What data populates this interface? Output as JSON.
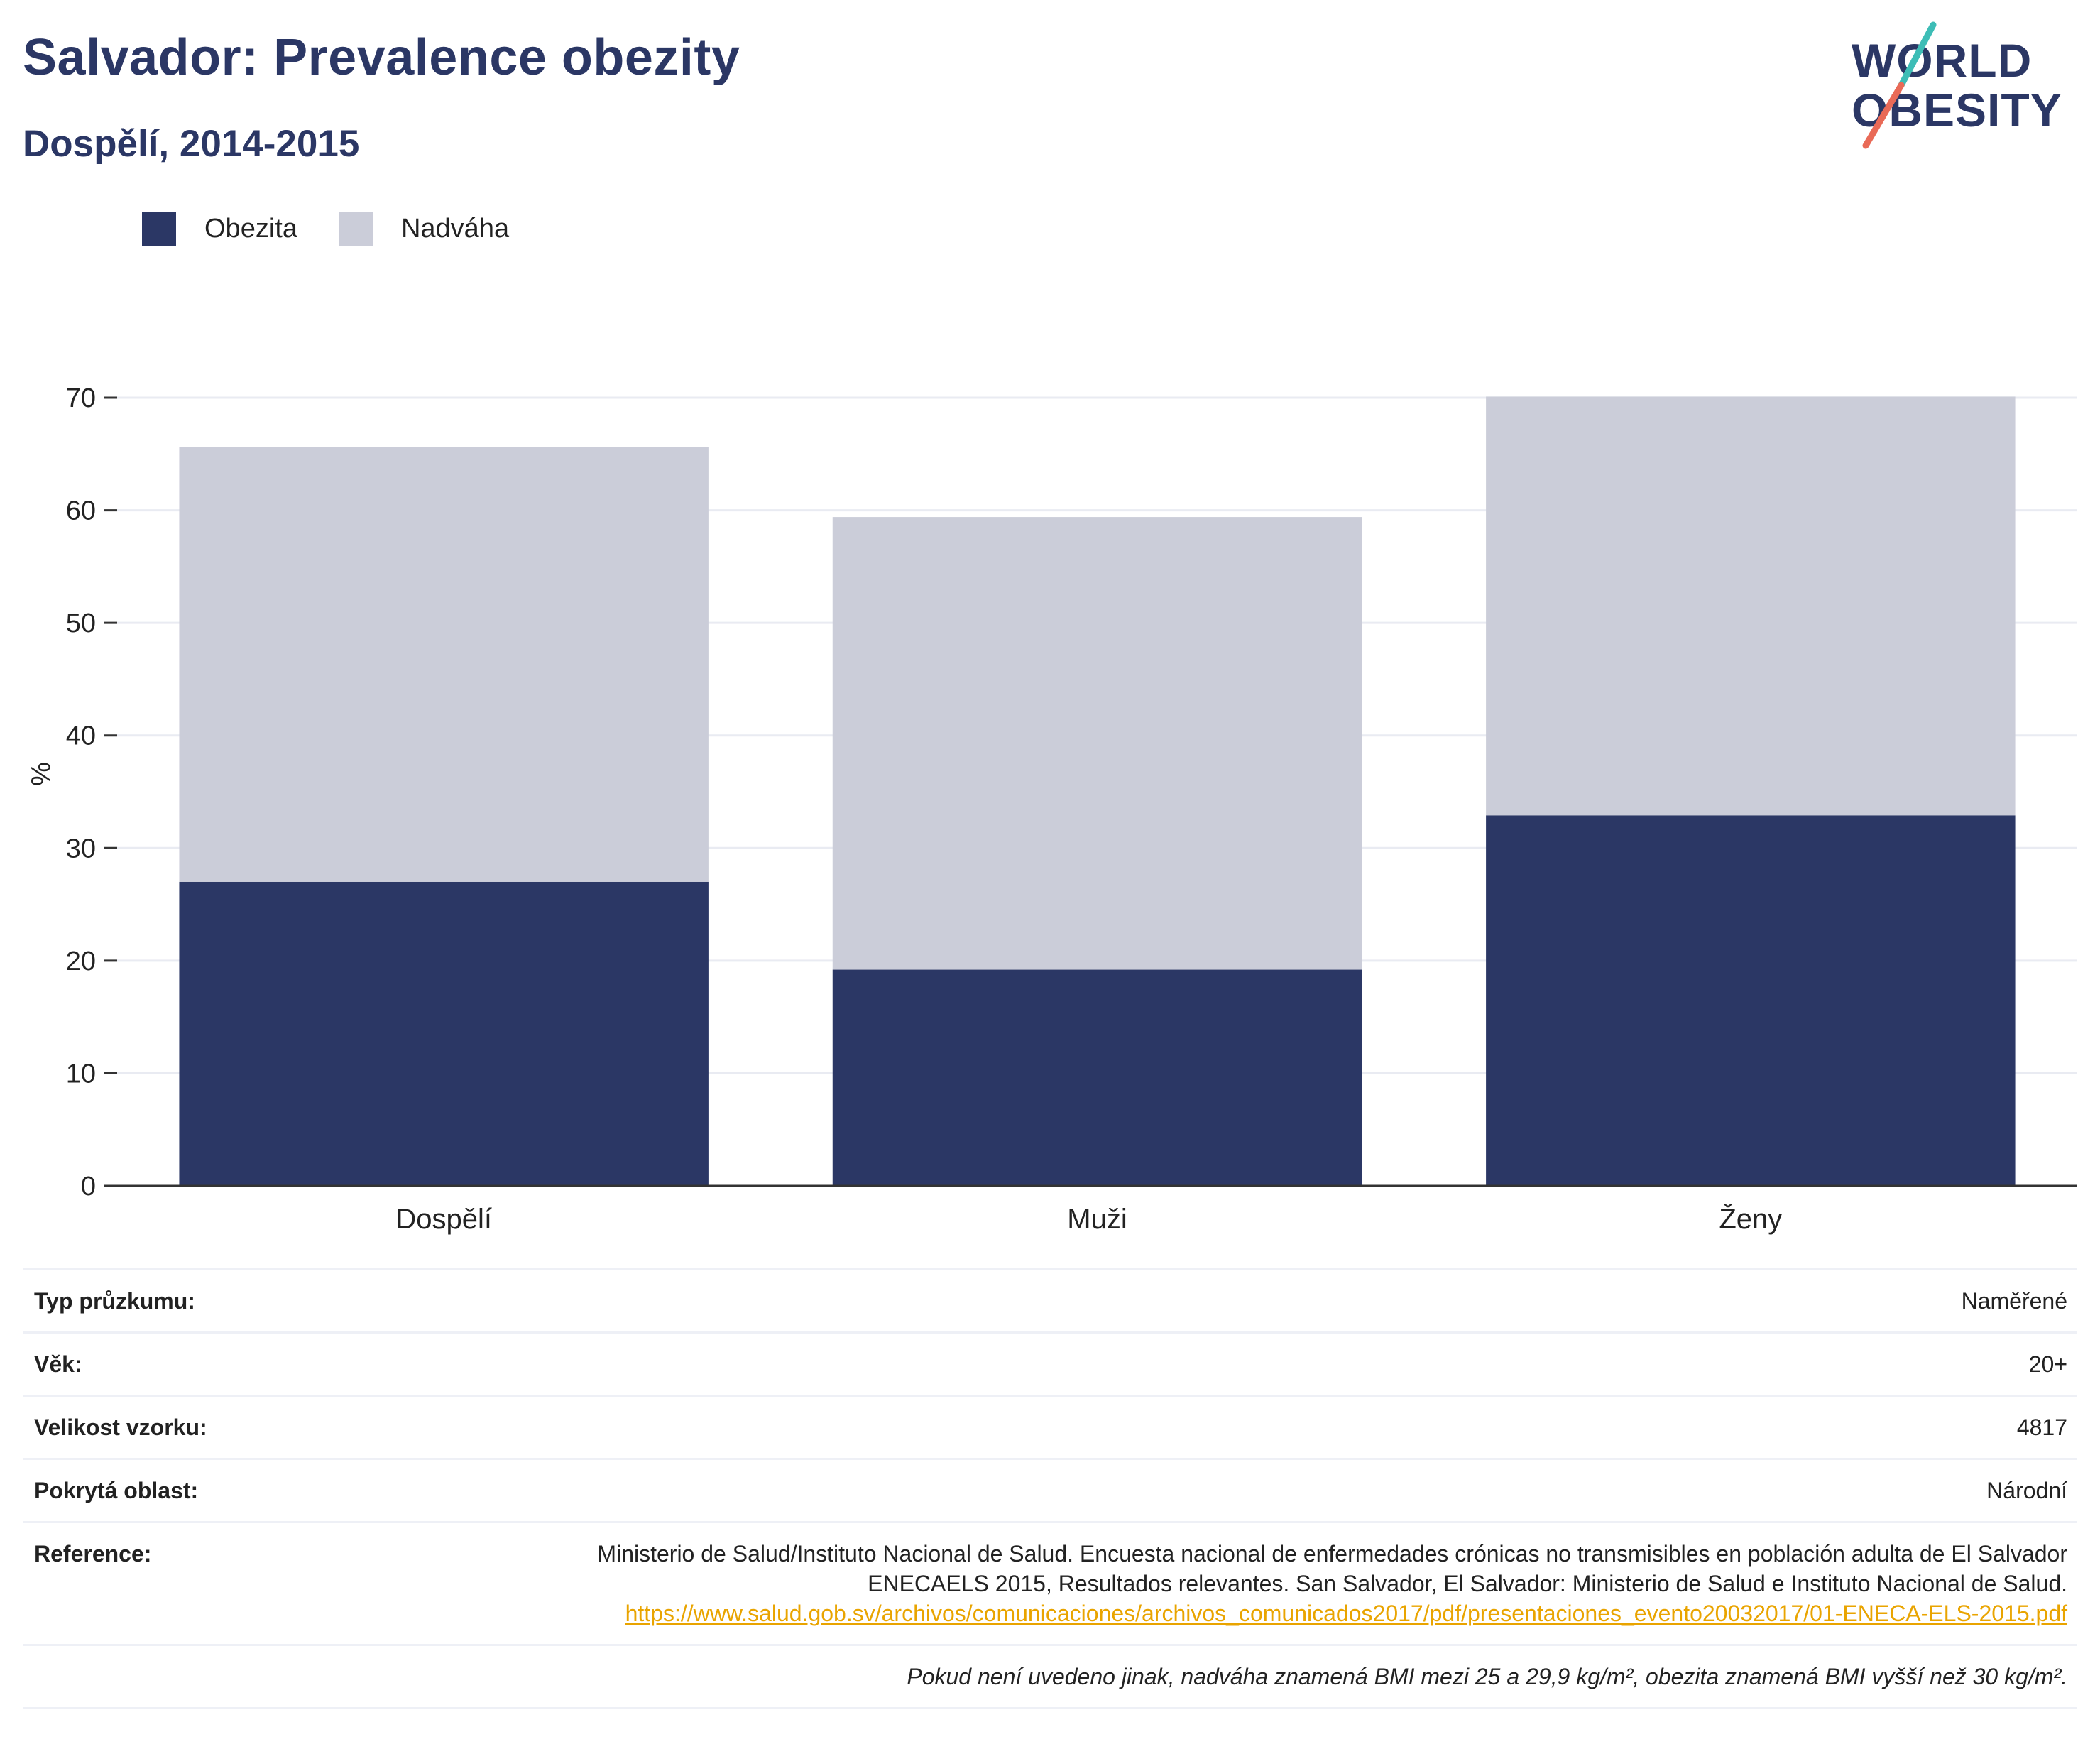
{
  "header": {
    "title": "Salvador: Prevalence obezity",
    "subtitle": "Dospělí, 2014-2015"
  },
  "logo": {
    "line1": "WORLD",
    "line2": "OBESITY"
  },
  "legend": [
    {
      "label": "Obezita",
      "color": "#2b3765"
    },
    {
      "label": "Nadváha",
      "color": "#cbcdd9"
    }
  ],
  "chart_data": {
    "type": "bar",
    "stacked": true,
    "categories": [
      "Dospělí",
      "Muži",
      "Ženy"
    ],
    "series": [
      {
        "name": "Obezita",
        "values": [
          27.0,
          19.2,
          32.9
        ],
        "color": "#2b3765"
      },
      {
        "name": "Nadváha",
        "values": [
          38.6,
          40.2,
          37.2
        ],
        "color": "#cbcdd9"
      }
    ],
    "ylabel": "%",
    "ylim": [
      0,
      70
    ],
    "yticks": [
      0,
      10,
      20,
      30,
      40,
      50,
      60,
      70
    ],
    "grid": true,
    "legend_position": "top-left"
  },
  "info": {
    "survey_type_label": "Typ průzkumu:",
    "survey_type_value": "Naměřené",
    "age_label": "Věk:",
    "age_value": "20+",
    "sample_label": "Velikost vzorku:",
    "sample_value": "4817",
    "area_label": "Pokrytá oblast:",
    "area_value": "Národní",
    "reference_label": "Reference:",
    "reference_text": "Ministerio de Salud/Instituto Nacional de Salud. Encuesta nacional de enfermedades crónicas no transmisibles en población adulta de El Salvador ENECAELS 2015, Resultados relevantes. San Salvador, El Salvador: Ministerio de Salud e Instituto Nacional de Salud.",
    "reference_url": "https://www.salud.gob.sv/archivos/comunicaciones/archivos_comunicados2017/pdf/presentaciones_evento20032017/01-ENECA-ELS-2015.pdf",
    "note": "Pokud není uvedeno jinak, nadváha znamená BMI mezi 25 a 29,9 kg/m², obezita znamená BMI vyšší než 30 kg/m²."
  }
}
